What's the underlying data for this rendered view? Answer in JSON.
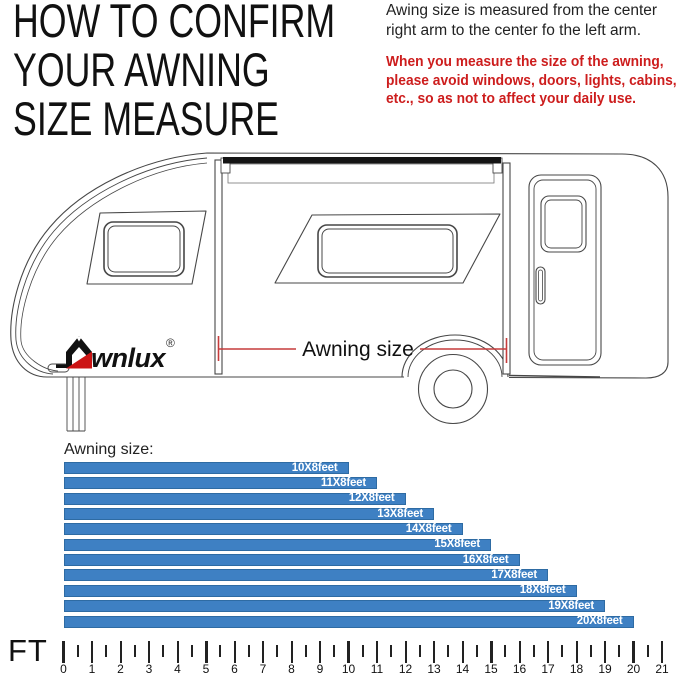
{
  "title": {
    "lines": [
      "HOW TO CONFIRM",
      "YOUR AWNING",
      "SIZE MEASURE"
    ]
  },
  "note": {
    "lines": [
      "Awing size is measured from the center",
      "right arm to the center fo the left arm."
    ]
  },
  "warning": {
    "lines": [
      "When you measure the size of the awning,",
      "please avoid windows, doors, lights, cabins,",
      "etc., so as not to affect your daily use."
    ],
    "color": "#cd1d1d"
  },
  "diagram": {
    "brand_full": "Awnlux",
    "brand_text": "wnlux",
    "registered_mark": "®",
    "measure_label": "Awning size",
    "measure_line_color": "#c63c3c",
    "logo_red": "#cc1414"
  },
  "chart_data": {
    "type": "bar",
    "orientation": "horizontal",
    "title": "Awning size:",
    "categories": [
      "10X8feet",
      "11X8feet",
      "12X8feet",
      "13X8feet",
      "14X8feet",
      "15X8feet",
      "16X8feet",
      "17X8feet",
      "18X8feet",
      "19X8feet",
      "20X8feet"
    ],
    "values": [
      10,
      11,
      12,
      13,
      14,
      15,
      16,
      17,
      18,
      19,
      20
    ],
    "unit_label": "FT",
    "xlabel": "feet",
    "x_axis": {
      "min": 0,
      "max": 21,
      "tick_interval": 1,
      "minor_tick_interval": 0.5,
      "tick_labels": [
        "0",
        "1",
        "2",
        "3",
        "4",
        "5",
        "6",
        "7",
        "8",
        "9",
        "10",
        "11",
        "12",
        "13",
        "14",
        "15",
        "16",
        "17",
        "18",
        "19",
        "20",
        "21"
      ]
    },
    "bar_color": "#3e80c3",
    "bar_border_color": "#2e6ba3",
    "bar_label_color": "#ffffff",
    "legend": false,
    "grid": false
  }
}
